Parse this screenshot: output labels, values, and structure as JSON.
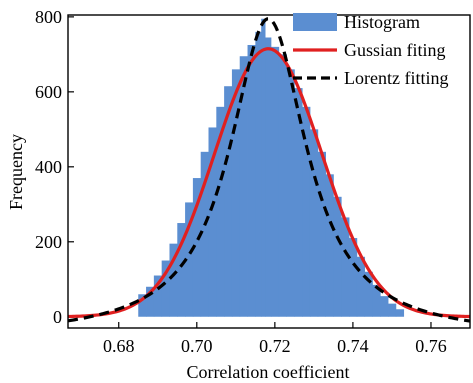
{
  "chart_data": {
    "type": "bar",
    "xlabel": "Correlation coefficient",
    "ylabel": "Frequency",
    "xlim": [
      0.667,
      0.77
    ],
    "ylim": [
      -30,
      805
    ],
    "x_ticks": [
      0.68,
      0.7,
      0.72,
      0.74,
      0.76
    ],
    "x_tick_labels": [
      "0.68",
      "0.70",
      "0.72",
      "0.74",
      "0.76"
    ],
    "y_ticks": [
      0,
      200,
      400,
      600,
      800
    ],
    "y_tick_labels": [
      "0",
      "200",
      "400",
      "600",
      "800"
    ],
    "legend": {
      "position": "top-right",
      "entries": [
        {
          "name": "Histogram",
          "style": "patch"
        },
        {
          "name": "Gussian fiting",
          "style": "solid"
        },
        {
          "name": "Lorentz fitting",
          "style": "dashed"
        }
      ]
    },
    "colors": {
      "histogram": "#5b8ed1",
      "gaussian": "#e02020",
      "lorentz": "#000000"
    },
    "histogram": {
      "name": "Histogram",
      "x": [
        0.686,
        0.688,
        0.69,
        0.692,
        0.694,
        0.696,
        0.698,
        0.7,
        0.702,
        0.704,
        0.706,
        0.708,
        0.71,
        0.712,
        0.714,
        0.716,
        0.717,
        0.718,
        0.72,
        0.722,
        0.724,
        0.726,
        0.728,
        0.73,
        0.732,
        0.734,
        0.736,
        0.738,
        0.74,
        0.742,
        0.744,
        0.746,
        0.748,
        0.75,
        0.752
      ],
      "y": [
        60,
        80,
        110,
        150,
        195,
        250,
        305,
        370,
        440,
        505,
        560,
        615,
        660,
        695,
        725,
        760,
        795,
        745,
        720,
        700,
        660,
        610,
        560,
        500,
        440,
        380,
        320,
        265,
        210,
        160,
        120,
        85,
        55,
        35,
        20
      ]
    },
    "gaussian_fit": {
      "name": "Gussian fiting",
      "mean": 0.7183,
      "sigma": 0.0138,
      "amplitude": 715
    },
    "lorentz_fit": {
      "name": "Lorentz fitting",
      "center": 0.7183,
      "gamma": 0.024,
      "amplitude": 795,
      "offset": -55
    }
  }
}
